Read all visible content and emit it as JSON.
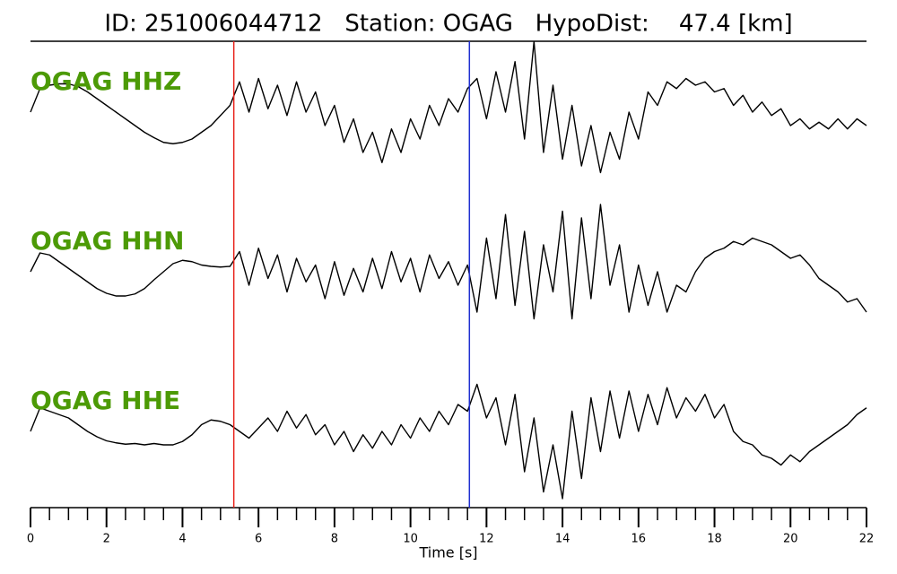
{
  "chart_data": {
    "type": "seismogram",
    "title": "ID: 251006044712   Station: OGAG   HypoDist:    47.4 [km]",
    "xlabel": "Time [s]",
    "xlim": [
      0,
      22
    ],
    "xticks": [
      0,
      2,
      4,
      6,
      8,
      10,
      12,
      14,
      16,
      18,
      20,
      22
    ],
    "xminorticks": [
      0.5,
      1,
      1.5,
      2.5,
      3,
      3.5,
      4.5,
      5,
      5.5,
      6.5,
      7,
      7.5,
      8.5,
      9,
      9.5,
      10.5,
      11,
      11.5,
      12.5,
      13,
      13.5,
      14.5,
      15,
      15.5,
      16.5,
      17,
      17.5,
      18.5,
      19,
      19.5,
      20.5,
      21,
      21.5
    ],
    "ylim": [
      -1,
      1
    ],
    "label_color": "#4c9a06",
    "picks": [
      {
        "x": 5.35,
        "color": "#e8211a"
      },
      {
        "x": 11.55,
        "color": "#1f2fd0"
      }
    ],
    "x": [
      0,
      0.25,
      0.5,
      0.75,
      1,
      1.25,
      1.5,
      1.75,
      2,
      2.25,
      2.5,
      2.75,
      3,
      3.25,
      3.5,
      3.75,
      4,
      4.25,
      4.5,
      4.75,
      5,
      5.25,
      5.5,
      5.75,
      6,
      6.25,
      6.5,
      6.75,
      7,
      7.25,
      7.5,
      7.75,
      8,
      8.25,
      8.5,
      8.75,
      9,
      9.25,
      9.5,
      9.75,
      10,
      10.25,
      10.5,
      10.75,
      11,
      11.25,
      11.5,
      11.75,
      12,
      12.25,
      12.5,
      12.75,
      13,
      13.25,
      13.5,
      13.75,
      14,
      14.25,
      14.5,
      14.75,
      15,
      15.25,
      15.5,
      15.75,
      16,
      16.25,
      16.5,
      16.75,
      17,
      17.25,
      17.5,
      17.75,
      18,
      18.25,
      18.5,
      18.75,
      19,
      19.25,
      19.5,
      19.75,
      20,
      20.25,
      20.5,
      20.75,
      21,
      21.25,
      21.5,
      21.75,
      22
    ],
    "series": [
      {
        "name": "OGAG HHZ",
        "color": "#000000",
        "values": [
          0.0,
          0.35,
          0.4,
          0.42,
          0.42,
          0.38,
          0.3,
          0.2,
          0.1,
          0.0,
          -0.1,
          -0.2,
          -0.3,
          -0.38,
          -0.45,
          -0.47,
          -0.45,
          -0.4,
          -0.3,
          -0.2,
          -0.05,
          0.1,
          0.45,
          0.0,
          0.5,
          0.05,
          0.4,
          -0.05,
          0.45,
          0.0,
          0.3,
          -0.2,
          0.1,
          -0.45,
          -0.1,
          -0.6,
          -0.3,
          -0.75,
          -0.25,
          -0.6,
          -0.1,
          -0.4,
          0.1,
          -0.2,
          0.2,
          0.0,
          0.35,
          0.5,
          -0.1,
          0.6,
          0.0,
          0.75,
          -0.4,
          1.05,
          -0.6,
          0.4,
          -0.7,
          0.1,
          -0.8,
          -0.2,
          -0.9,
          -0.3,
          -0.7,
          0.0,
          -0.4,
          0.3,
          0.1,
          0.45,
          0.35,
          0.5,
          0.4,
          0.45,
          0.3,
          0.35,
          0.1,
          0.25,
          0.0,
          0.15,
          -0.05,
          0.05,
          -0.2,
          -0.1,
          -0.25,
          -0.15,
          -0.25,
          -0.1,
          -0.25,
          -0.1,
          -0.2
        ]
      },
      {
        "name": "OGAG HHN",
        "color": "#000000",
        "values": [
          0.0,
          0.28,
          0.25,
          0.15,
          0.05,
          -0.05,
          -0.15,
          -0.25,
          -0.32,
          -0.36,
          -0.36,
          -0.33,
          -0.25,
          -0.12,
          0.0,
          0.12,
          0.17,
          0.15,
          0.1,
          0.08,
          0.07,
          0.08,
          0.3,
          -0.2,
          0.35,
          -0.1,
          0.25,
          -0.3,
          0.2,
          -0.15,
          0.1,
          -0.4,
          0.15,
          -0.35,
          0.05,
          -0.3,
          0.2,
          -0.25,
          0.3,
          -0.15,
          0.2,
          -0.3,
          0.25,
          -0.1,
          0.15,
          -0.2,
          0.1,
          -0.6,
          0.5,
          -0.4,
          0.85,
          -0.5,
          0.6,
          -0.7,
          0.4,
          -0.3,
          0.9,
          -0.7,
          0.8,
          -0.4,
          1.0,
          -0.2,
          0.4,
          -0.6,
          0.1,
          -0.5,
          0.0,
          -0.6,
          -0.2,
          -0.3,
          0.0,
          0.2,
          0.3,
          0.35,
          0.45,
          0.4,
          0.5,
          0.45,
          0.4,
          0.3,
          0.2,
          0.25,
          0.1,
          -0.1,
          -0.2,
          -0.3,
          -0.45,
          -0.4,
          -0.6
        ]
      },
      {
        "name": "OGAG HHE",
        "color": "#000000",
        "values": [
          0.0,
          0.35,
          0.3,
          0.25,
          0.2,
          0.1,
          0.0,
          -0.08,
          -0.14,
          -0.17,
          -0.19,
          -0.18,
          -0.2,
          -0.18,
          -0.2,
          -0.2,
          -0.15,
          -0.05,
          0.1,
          0.17,
          0.15,
          0.1,
          0.0,
          -0.1,
          0.05,
          0.2,
          0.0,
          0.3,
          0.05,
          0.25,
          -0.05,
          0.1,
          -0.2,
          0.0,
          -0.3,
          -0.05,
          -0.25,
          0.0,
          -0.2,
          0.1,
          -0.1,
          0.2,
          0.0,
          0.3,
          0.1,
          0.4,
          0.3,
          0.7,
          0.2,
          0.5,
          -0.2,
          0.55,
          -0.6,
          0.2,
          -0.9,
          -0.2,
          -1.0,
          0.3,
          -0.7,
          0.5,
          -0.3,
          0.6,
          -0.1,
          0.6,
          0.0,
          0.55,
          0.1,
          0.65,
          0.2,
          0.5,
          0.3,
          0.55,
          0.2,
          0.4,
          0.0,
          -0.15,
          -0.2,
          -0.35,
          -0.4,
          -0.5,
          -0.35,
          -0.45,
          -0.3,
          -0.2,
          -0.1,
          0.0,
          0.1,
          0.25,
          0.35
        ]
      }
    ]
  }
}
